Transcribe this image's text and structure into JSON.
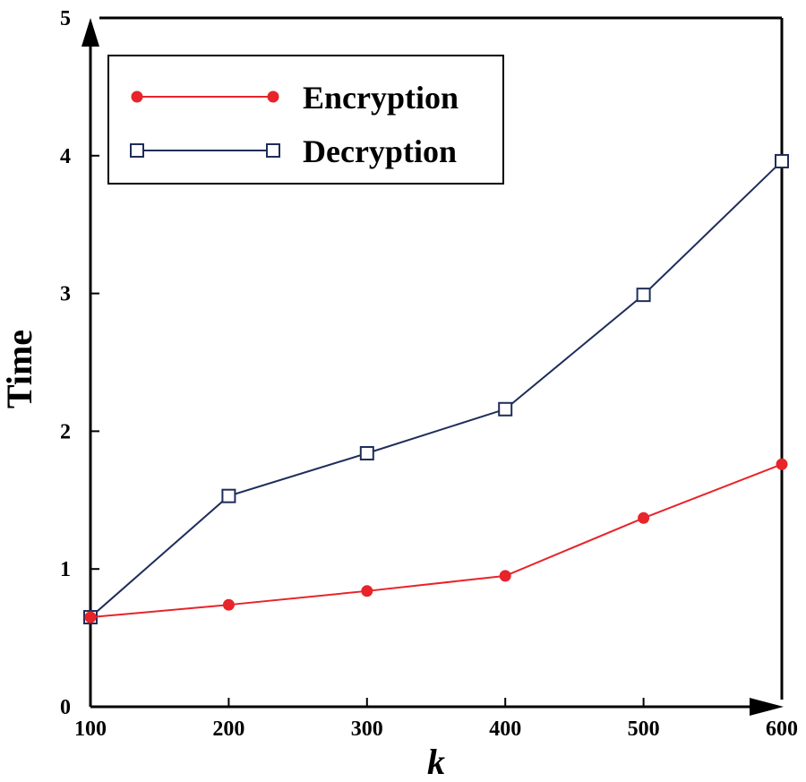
{
  "chart_data": {
    "type": "line",
    "xlabel": "k",
    "ylabel": "Time",
    "x": [
      100,
      200,
      300,
      400,
      500,
      600
    ],
    "xlim": [
      100,
      600
    ],
    "ylim": [
      0,
      5
    ],
    "xticks": [
      "100",
      "200",
      "300",
      "400",
      "500",
      "600"
    ],
    "yticks": [
      "0",
      "1",
      "2",
      "3",
      "4",
      "5"
    ],
    "grid": false,
    "legend": "top-left",
    "series": [
      {
        "name": "Encryption",
        "color": "#e8232a",
        "marker": "filled-circle",
        "values": [
          0.65,
          0.74,
          0.84,
          0.95,
          1.37,
          1.76
        ]
      },
      {
        "name": "Decryption",
        "color": "#1f2d5a",
        "marker": "open-square",
        "values": [
          0.65,
          1.53,
          1.84,
          2.16,
          2.99,
          3.96
        ]
      }
    ]
  }
}
